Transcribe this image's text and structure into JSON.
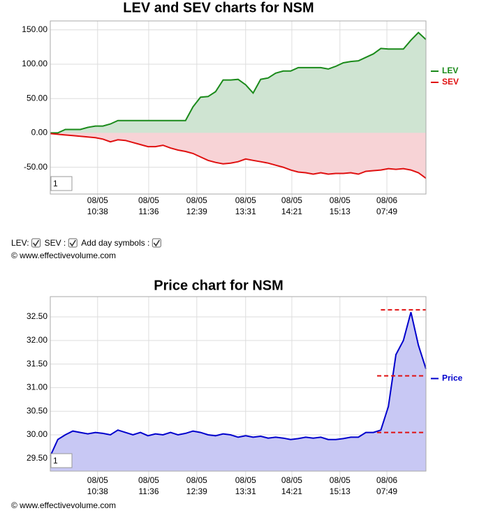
{
  "chart_data": [
    {
      "type": "line",
      "title": "LEV and SEV charts for NSM",
      "x": [
        0,
        2,
        4,
        6,
        8,
        10,
        12,
        14,
        16,
        18,
        20,
        22,
        24,
        26,
        28,
        30,
        32,
        34,
        36,
        38,
        40,
        42,
        44,
        46,
        48,
        50,
        52,
        54,
        56,
        58,
        60,
        62,
        64,
        66,
        68,
        70,
        72,
        74,
        76,
        78,
        80,
        82,
        84,
        86,
        88,
        90,
        92,
        94,
        96,
        98,
        100
      ],
      "xlim": [
        0,
        100
      ],
      "xticks": [
        {
          "value": 12.6,
          "label": [
            "08/05",
            "10:38"
          ]
        },
        {
          "value": 26.2,
          "label": [
            "08/05",
            "11:36"
          ]
        },
        {
          "value": 39.0,
          "label": [
            "08/05",
            "12:39"
          ]
        },
        {
          "value": 52.0,
          "label": [
            "08/05",
            "13:31"
          ]
        },
        {
          "value": 64.3,
          "label": [
            "08/05",
            "14:21"
          ]
        },
        {
          "value": 77.1,
          "label": [
            "08/05",
            "15:13"
          ]
        },
        {
          "value": 89.6,
          "label": [
            "08/06",
            "07:49"
          ]
        }
      ],
      "ylim": [
        -89,
        163
      ],
      "yticks": [
        {
          "value": -50,
          "label": "-50.00"
        },
        {
          "value": 0,
          "label": "0.00"
        },
        {
          "value": 50,
          "label": "50.00"
        },
        {
          "value": 100,
          "label": "100.00"
        },
        {
          "value": 150,
          "label": "150.00"
        }
      ],
      "grid": true,
      "area_base": 0,
      "zoom_box": "1",
      "series": [
        {
          "name": "LEV",
          "color": "#1a8a1a",
          "fill": "#cfe4d2",
          "values": [
            0,
            0,
            5,
            5,
            5,
            8,
            10,
            10,
            13,
            18,
            18,
            18,
            18,
            18,
            18,
            18,
            18,
            18,
            18,
            38,
            52,
            53,
            60,
            77,
            77,
            78,
            70,
            58,
            78,
            80,
            87,
            90,
            90,
            95,
            95,
            95,
            95,
            93,
            97,
            102,
            104,
            105,
            110,
            115,
            123,
            122,
            122,
            122,
            135,
            146,
            136
          ]
        },
        {
          "name": "SEV",
          "color": "#e01010",
          "fill": "#f7d3d6",
          "values": [
            -1,
            -2,
            -3,
            -4,
            -5,
            -6,
            -7,
            -9,
            -13,
            -10,
            -11,
            -14,
            -17,
            -20,
            -20,
            -18,
            -22,
            -25,
            -27,
            -30,
            -35,
            -40,
            -43,
            -45,
            -44,
            -42,
            -38,
            -40,
            -42,
            -44,
            -47,
            -50,
            -54,
            -57,
            -58,
            -60,
            -58,
            -60,
            -59,
            -59,
            -58,
            -60,
            -56,
            -55,
            -54,
            -52,
            -53,
            -52,
            -54,
            -58,
            -66
          ]
        }
      ]
    },
    {
      "type": "line",
      "title": "Price chart for NSM",
      "x": [
        0,
        2,
        4,
        6,
        8,
        10,
        12,
        14,
        16,
        18,
        20,
        22,
        24,
        26,
        28,
        30,
        32,
        34,
        36,
        38,
        40,
        42,
        44,
        46,
        48,
        50,
        52,
        54,
        56,
        58,
        60,
        62,
        64,
        66,
        68,
        70,
        72,
        74,
        76,
        78,
        80,
        82,
        84,
        86,
        88,
        90,
        92,
        94,
        96,
        98,
        100
      ],
      "xlim": [
        0,
        100
      ],
      "xticks": [
        {
          "value": 12.6,
          "label": [
            "08/05",
            "10:38"
          ]
        },
        {
          "value": 26.2,
          "label": [
            "08/05",
            "11:36"
          ]
        },
        {
          "value": 39.0,
          "label": [
            "08/05",
            "12:39"
          ]
        },
        {
          "value": 52.0,
          "label": [
            "08/05",
            "13:31"
          ]
        },
        {
          "value": 64.3,
          "label": [
            "08/05",
            "14:21"
          ]
        },
        {
          "value": 77.1,
          "label": [
            "08/05",
            "15:13"
          ]
        },
        {
          "value": 89.6,
          "label": [
            "08/06",
            "07:49"
          ]
        }
      ],
      "ylim": [
        29.23,
        32.93
      ],
      "yticks": [
        {
          "value": 29.5,
          "label": "29.50"
        },
        {
          "value": 30,
          "label": "30.00"
        },
        {
          "value": 30.5,
          "label": "30.50"
        },
        {
          "value": 31,
          "label": "31.00"
        },
        {
          "value": 31.5,
          "label": "31.50"
        },
        {
          "value": 32,
          "label": "32.00"
        },
        {
          "value": 32.5,
          "label": "32.50"
        }
      ],
      "grid": true,
      "zoom_box": "1",
      "series": [
        {
          "name": "Price",
          "color": "#0000cc",
          "fill": "#c8c8f4",
          "values": [
            29.55,
            29.9,
            30.0,
            30.08,
            30.05,
            30.02,
            30.05,
            30.03,
            30.0,
            30.1,
            30.05,
            30.0,
            30.05,
            29.98,
            30.02,
            30.0,
            30.05,
            30.0,
            30.03,
            30.08,
            30.05,
            30.0,
            29.98,
            30.02,
            30.0,
            29.95,
            29.98,
            29.95,
            29.97,
            29.93,
            29.95,
            29.93,
            29.9,
            29.92,
            29.95,
            29.93,
            29.95,
            29.9,
            29.9,
            29.92,
            29.95,
            29.95,
            30.05,
            30.05,
            30.1,
            30.6,
            31.7,
            32.0,
            32.6,
            31.9,
            31.4
          ]
        }
      ],
      "reference_lines": [
        {
          "value": 32.65,
          "x": [
            88,
            100
          ],
          "color": "#e01010"
        },
        {
          "value": 31.25,
          "x": [
            87,
            100
          ],
          "color": "#e01010"
        },
        {
          "value": 30.05,
          "x": [
            87,
            100
          ],
          "color": "#e01010"
        }
      ]
    }
  ],
  "controls": {
    "labels": [
      "LEV:",
      "SEV :",
      "Add day symbols :"
    ],
    "checked": [
      true,
      true,
      true
    ]
  },
  "copyright": [
    "© www.effectivevolume.com",
    "© www.effectivevolume.com"
  ]
}
